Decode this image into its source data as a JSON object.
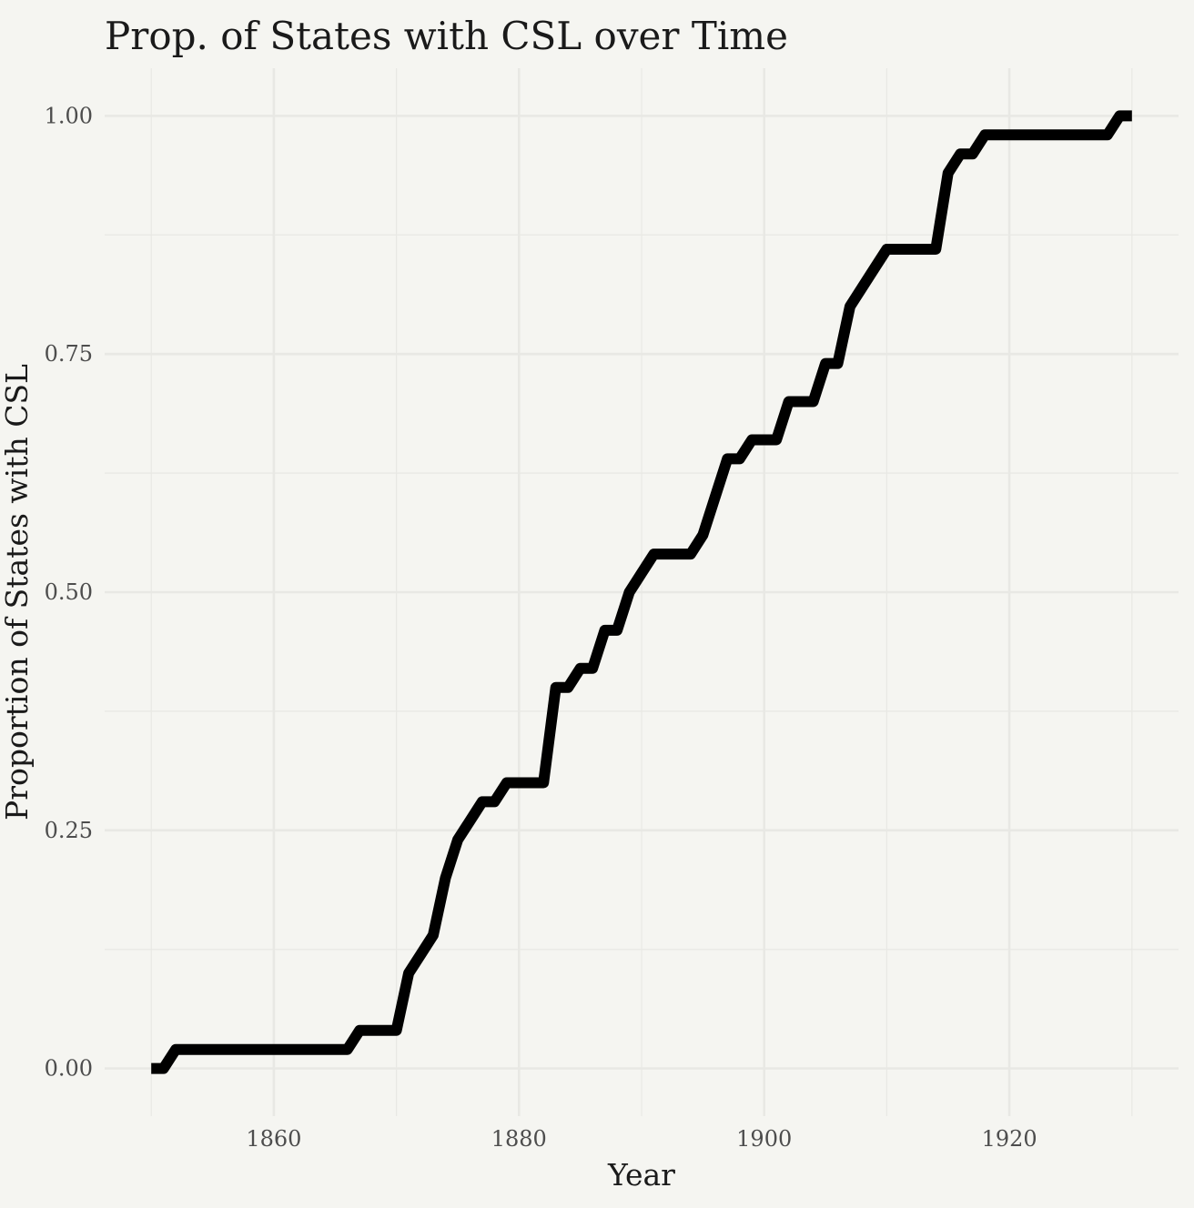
{
  "chart_data": {
    "type": "line",
    "title": "Prop. of States with CSL over Time",
    "xlabel": "Year",
    "ylabel": "Proportion of States with CSL",
    "xlim": [
      1846.2,
      1933.8
    ],
    "ylim": [
      -0.05,
      1.05
    ],
    "x_ticks": [
      1860,
      1880,
      1900,
      1920
    ],
    "x_tick_labels": [
      "1860",
      "1880",
      "1900",
      "1920"
    ],
    "y_ticks": [
      0,
      0.25,
      0.5,
      0.75,
      1
    ],
    "y_tick_labels": [
      "0.00",
      "0.25",
      "0.50",
      "0.75",
      "1.00"
    ],
    "grid": true,
    "legend": "none",
    "colors": {
      "background": "#f5f5f1",
      "grid": "#e8e8e4",
      "line": "#000000"
    },
    "series": [
      {
        "x": [
          1850,
          1851,
          1852,
          1853,
          1854,
          1855,
          1856,
          1857,
          1858,
          1859,
          1860,
          1861,
          1862,
          1863,
          1864,
          1865,
          1866,
          1867,
          1868,
          1869,
          1870,
          1871,
          1872,
          1873,
          1874,
          1875,
          1876,
          1877,
          1878,
          1879,
          1880,
          1881,
          1882,
          1883,
          1884,
          1885,
          1886,
          1887,
          1888,
          1889,
          1890,
          1891,
          1892,
          1893,
          1894,
          1895,
          1896,
          1897,
          1898,
          1899,
          1900,
          1901,
          1902,
          1903,
          1904,
          1905,
          1906,
          1907,
          1908,
          1909,
          1910,
          1911,
          1912,
          1913,
          1914,
          1915,
          1916,
          1917,
          1918,
          1919,
          1920,
          1921,
          1922,
          1923,
          1924,
          1925,
          1926,
          1927,
          1928,
          1929,
          1930
        ],
        "y": [
          0,
          0,
          0.02,
          0.02,
          0.02,
          0.02,
          0.02,
          0.02,
          0.02,
          0.02,
          0.02,
          0.02,
          0.02,
          0.02,
          0.02,
          0.02,
          0.02,
          0.04,
          0.04,
          0.04,
          0.04,
          0.1,
          0.12,
          0.14,
          0.2,
          0.24,
          0.26,
          0.28,
          0.28,
          0.3,
          0.3,
          0.3,
          0.3,
          0.4,
          0.4,
          0.42,
          0.42,
          0.46,
          0.46,
          0.5,
          0.52,
          0.54,
          0.54,
          0.54,
          0.54,
          0.56,
          0.6,
          0.64,
          0.64,
          0.66,
          0.66,
          0.66,
          0.7,
          0.7,
          0.7,
          0.74,
          0.74,
          0.8,
          0.82,
          0.84,
          0.86,
          0.86,
          0.86,
          0.86,
          0.86,
          0.94,
          0.96,
          0.96,
          0.98,
          0.98,
          0.98,
          0.98,
          0.98,
          0.98,
          0.98,
          0.98,
          0.98,
          0.98,
          0.98,
          1.0,
          1.0
        ]
      }
    ]
  }
}
